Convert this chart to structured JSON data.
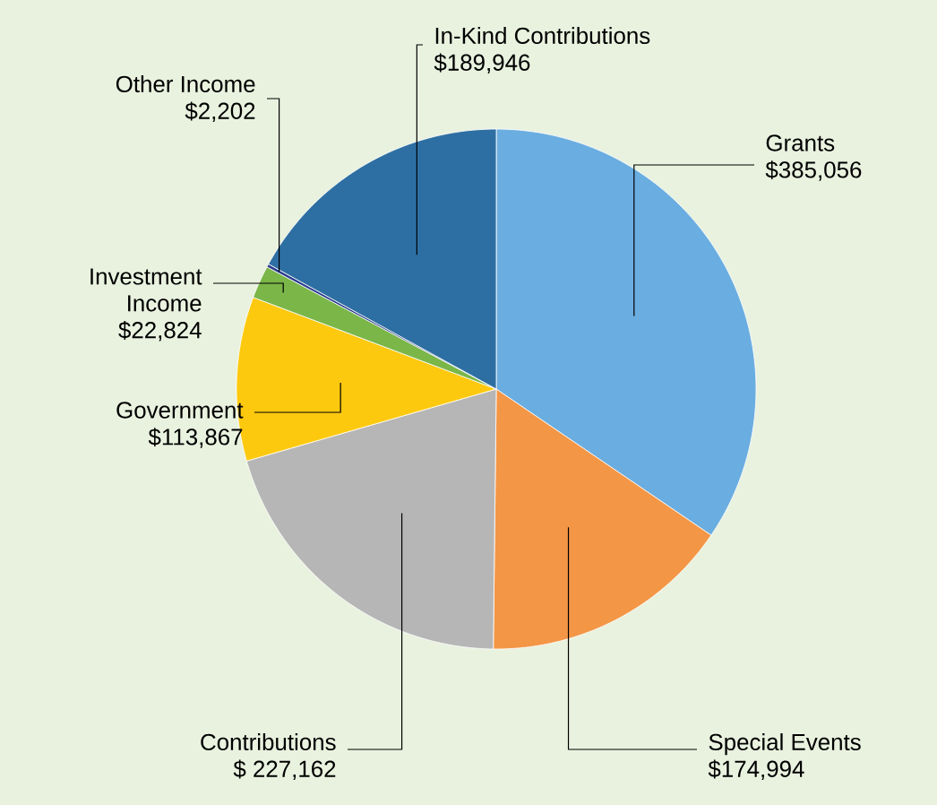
{
  "chart_data": {
    "type": "pie",
    "categories": [
      "Grants",
      "Special Events",
      "Contributions",
      "Government",
      "Investment Income",
      "Other Income",
      "In-Kind Contributions"
    ],
    "values": [
      385056,
      174994,
      227162,
      113867,
      22824,
      2202,
      189946
    ],
    "value_labels": [
      "$385,056",
      "$174,994",
      "$ 227,162",
      "$113,867",
      "$22,824",
      "$2,202",
      "$189,946"
    ],
    "colors": [
      "#6aade0",
      "#f39646",
      "#b6b6b6",
      "#fdc90f",
      "#7ab648",
      "#2b3d8f",
      "#2e6fa3"
    ]
  }
}
